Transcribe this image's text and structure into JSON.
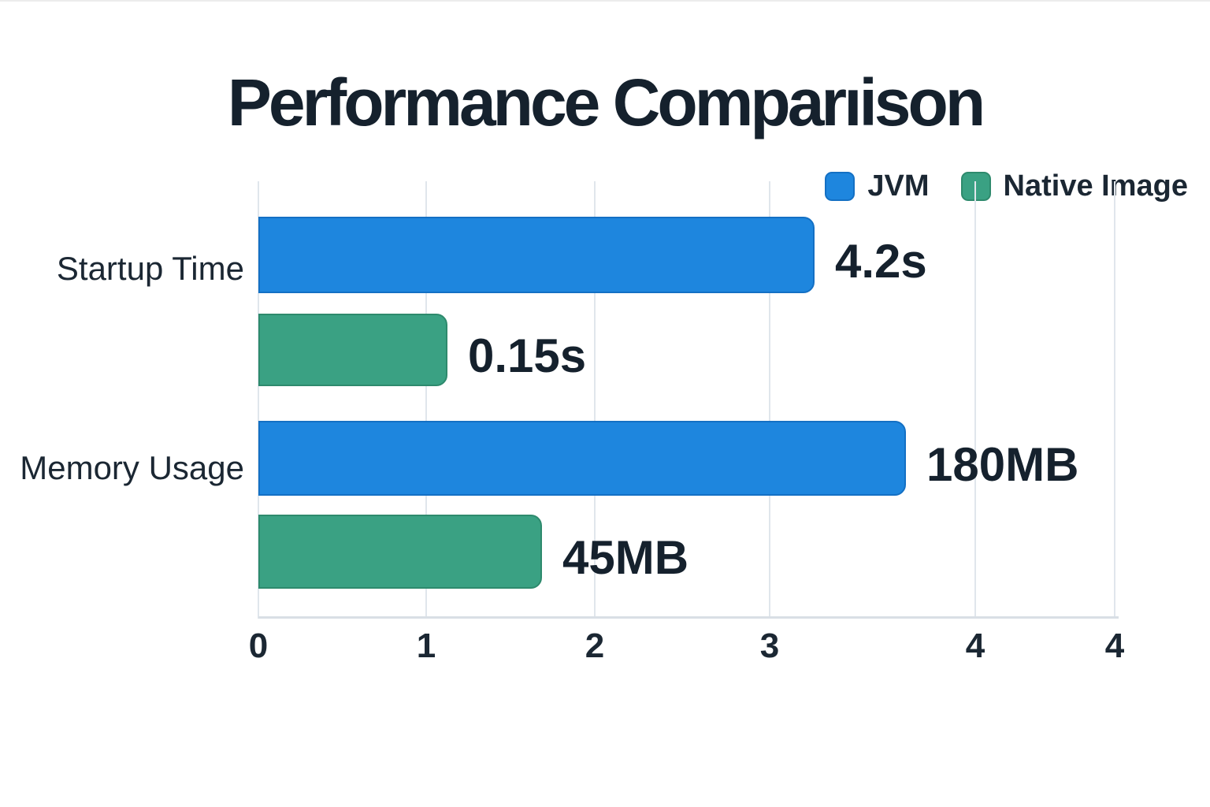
{
  "title": "Performance Comparıison",
  "colors": {
    "background": "#FFFFFF",
    "title_text": "#15212D",
    "label_text": "#1B2733",
    "gridline": "#E0E6EC",
    "axis_line": "#D9DFE5",
    "jvm_blue": "#1E86DE",
    "native_green": "#3AA183"
  },
  "chart_data": {
    "type": "bar",
    "orientation": "horizontal",
    "title": "Performance Comparıison",
    "categories": [
      "Startup Time",
      "Memory Usage"
    ],
    "series": [
      {
        "name": "JVM",
        "color": "#1E86DE",
        "border_color": "#1470C4",
        "values": [
          4.2,
          180
        ],
        "value_labels": [
          "4.2s",
          "180MB"
        ],
        "drawn_length_units": [
          3.3,
          3.84
        ]
      },
      {
        "name": "Native Image",
        "color": "#3AA183",
        "border_color": "#2E8A6D",
        "values": [
          0.15,
          45
        ],
        "value_labels": [
          "0.15s",
          "45MB"
        ],
        "drawn_length_units": [
          1.12,
          1.68
        ]
      }
    ],
    "x_axis": {
      "tick_labels": [
        "0",
        "1",
        "2",
        "3",
        "4",
        "4"
      ],
      "range": [
        0,
        4
      ],
      "grid": true
    },
    "legend": {
      "position": "top-right",
      "entries": [
        "JVM",
        "Native Image"
      ]
    }
  }
}
